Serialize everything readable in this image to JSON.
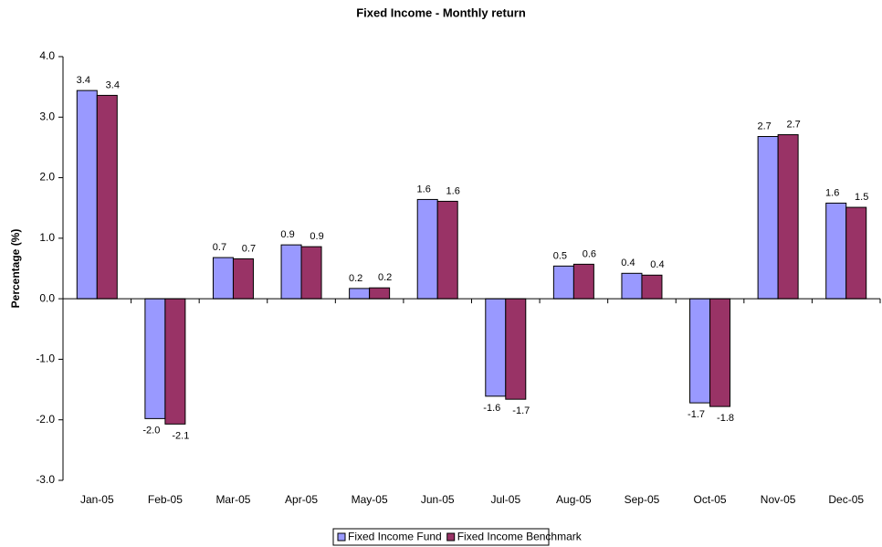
{
  "chart_data": {
    "type": "bar",
    "title": "Fixed Income - Monthly return",
    "y_label": "Percentage (%)",
    "categories": [
      "Jan-05",
      "Feb-05",
      "Mar-05",
      "Apr-05",
      "May-05",
      "Jun-05",
      "Jul-05",
      "Aug-05",
      "Sep-05",
      "Oct-05",
      "Nov-05",
      "Dec-05"
    ],
    "series": [
      {
        "name": "Fixed Income Fund",
        "color": "#9999ff",
        "values": [
          3.44,
          -1.98,
          0.68,
          0.89,
          0.17,
          1.64,
          -1.61,
          0.54,
          0.42,
          -1.72,
          2.68,
          1.58
        ],
        "value_labels": [
          "3.4",
          "-2.0",
          "0.7",
          "0.9",
          "0.2",
          "1.6",
          "-1.6",
          "0.5",
          "0.4",
          "-1.7",
          "2.7",
          "1.6"
        ]
      },
      {
        "name": "Fixed Income Benchmark",
        "color": "#993366",
        "values": [
          3.36,
          -2.07,
          0.66,
          0.86,
          0.18,
          1.61,
          -1.66,
          0.57,
          0.39,
          -1.78,
          2.71,
          1.51
        ],
        "value_labels": [
          "3.4",
          "-2.1",
          "0.7",
          "0.9",
          "0.2",
          "1.6",
          "-1.7",
          "0.6",
          "0.4",
          "-1.8",
          "2.7",
          "1.5"
        ]
      }
    ],
    "ylim": [
      -3,
      4
    ],
    "yticks": [
      {
        "value": -3,
        "label": "-3.0"
      },
      {
        "value": -2,
        "label": "-2.0"
      },
      {
        "value": -1,
        "label": "-1.0"
      },
      {
        "value": 0,
        "label": "0.0"
      },
      {
        "value": 1,
        "label": "1.0"
      },
      {
        "value": 2,
        "label": "2.0"
      },
      {
        "value": 3,
        "label": "3.0"
      },
      {
        "value": 4,
        "label": "4.0"
      }
    ],
    "grid": false,
    "legend": "bottom"
  }
}
